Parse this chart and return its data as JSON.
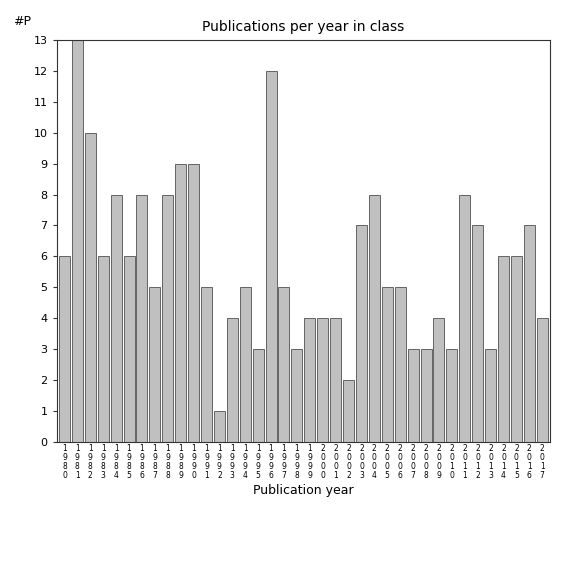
{
  "years": [
    "1980",
    "1981",
    "1982",
    "1983",
    "1984",
    "1985",
    "1986",
    "1987",
    "1988",
    "1989",
    "1990",
    "1991",
    "1992",
    "1993",
    "1994",
    "1995",
    "1996",
    "1997",
    "1998",
    "1999",
    "2000",
    "2001",
    "2002",
    "2003",
    "2004",
    "2005",
    "2006",
    "2007",
    "2008",
    "2009",
    "2010",
    "2011",
    "2012",
    "2013",
    "2014",
    "2015",
    "2016",
    "2017"
  ],
  "values": [
    6,
    13,
    10,
    6,
    8,
    6,
    8,
    5,
    8,
    9,
    9,
    5,
    1,
    4,
    5,
    3,
    12,
    5,
    3,
    4,
    4,
    4,
    2,
    7,
    8,
    5,
    5,
    3,
    3,
    4,
    3,
    8,
    7,
    3,
    6,
    6,
    7,
    4
  ],
  "bar_color": "#c0c0c0",
  "bar_edge_color": "#333333",
  "bar_edge_width": 0.5,
  "title": "Publications per year in class",
  "xlabel": "Publication year",
  "ylabel": "#P",
  "ylim_max": 13,
  "yticks": [
    0,
    1,
    2,
    3,
    4,
    5,
    6,
    7,
    8,
    9,
    10,
    11,
    12,
    13
  ],
  "title_fontsize": 10,
  "xlabel_fontsize": 9,
  "ylabel_fontsize": 9,
  "xtick_fontsize": 5.5,
  "ytick_fontsize": 8,
  "bg_color": "#ffffff",
  "spine_color": "#333333"
}
